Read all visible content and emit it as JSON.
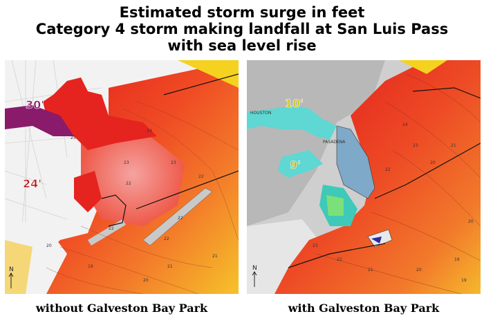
{
  "title": {
    "line1": "Estimated storm surge in feet",
    "line2": "Category 4 storm making landfall at San Luis Pass",
    "line3": "with sea level rise"
  },
  "left_map": {
    "caption": "without Galveston Bay Park",
    "callouts": [
      "30'",
      "24'"
    ],
    "contours": [
      "24",
      "23",
      "22",
      "22",
      "22",
      "22",
      "21",
      "21",
      "20",
      "20",
      "19",
      "23",
      "22",
      "25"
    ]
  },
  "right_map": {
    "caption": "with Galveston Bay Park",
    "callouts": [
      "10'",
      "9'"
    ],
    "contours": [
      "24",
      "23",
      "22",
      "21",
      "20",
      "20",
      "23",
      "22",
      "21",
      "20",
      "19",
      "19"
    ],
    "place_labels": [
      "PASADENA",
      "HOUSTON"
    ]
  },
  "north_arrow": "N",
  "colors": {
    "surge_high": "#e21b1b",
    "surge_mid": "#f06a28",
    "surge_low": "#f7c424",
    "bay_pink": "#f39a9a",
    "purple": "#8a1a6a",
    "park_blue": "#7fa9c8",
    "cyan": "#5fd7d2",
    "land_gray": "#bdbdbd"
  }
}
